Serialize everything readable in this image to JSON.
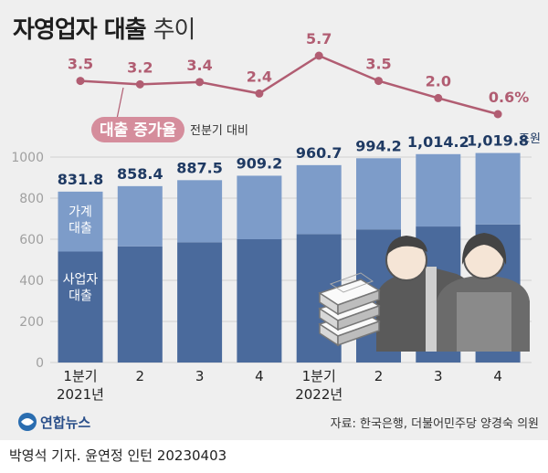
{
  "title": {
    "main": "자영업자 대출",
    "sub": "추이"
  },
  "legend": {
    "growth_pill": "대출 증가율",
    "growth_note": "전분기 대비",
    "unit": "조원"
  },
  "segment_labels": {
    "household": "가계\n대출",
    "business": "사업자\n대출"
  },
  "source": "자료: 한국은행, 더불어민주당 양경숙 의원",
  "logo": "연합뉴스",
  "byline": "박영석 기자. 윤연정 인턴  20230403",
  "colors": {
    "business": "#4a6a9c",
    "household": "#7d9cc9",
    "line": "#b15d72",
    "pill": "#d58d9c",
    "background": "#efefef"
  },
  "chart_data": {
    "type": "bar",
    "stacked": true,
    "categories": [
      "1분기\n2021년",
      "2",
      "3",
      "4",
      "1분기\n2022년",
      "2",
      "3",
      "4"
    ],
    "series": [
      {
        "name": "사업자 대출",
        "values": [
          540,
          565,
          585,
          600,
          625,
          648,
          662,
          672
        ]
      },
      {
        "name": "가계 대출",
        "values": [
          291.8,
          293.4,
          302.5,
          309.2,
          335.7,
          346.2,
          352.2,
          347.8
        ]
      }
    ],
    "totals": [
      831.8,
      858.4,
      887.5,
      909.2,
      960.7,
      994.2,
      1014.2,
      1019.8
    ],
    "total_labels": [
      "831.8",
      "858.4",
      "887.5",
      "909.2",
      "960.7",
      "994.2",
      "1,014.2",
      "1,019.8"
    ],
    "growth_rate": {
      "name": "대출 증가율 (전분기 대비, %)",
      "values": [
        3.5,
        3.2,
        3.4,
        2.4,
        5.7,
        3.5,
        2.0,
        0.6
      ],
      "labels": [
        "3.5",
        "3.2",
        "3.4",
        "2.4",
        "5.7",
        "3.5",
        "2.0",
        "0.6%"
      ]
    },
    "y_ticks": [
      0,
      200,
      400,
      600,
      800,
      1000
    ],
    "ylim": [
      0,
      1000
    ],
    "ylabel": "조원"
  }
}
